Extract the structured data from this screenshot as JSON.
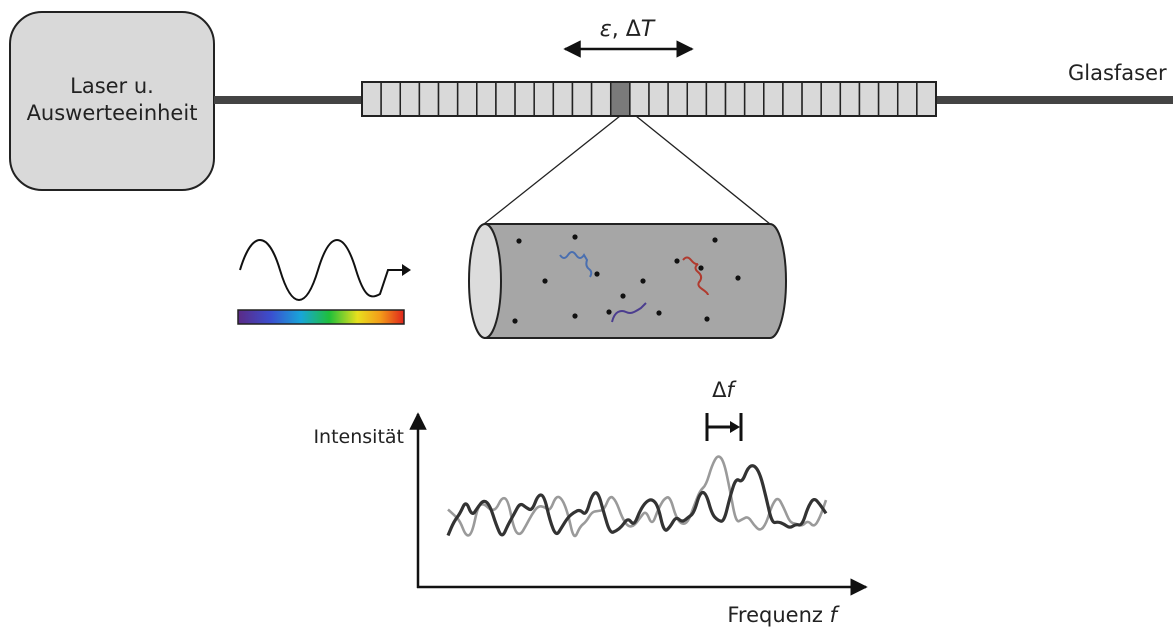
{
  "laser_box": {
    "line1": "Laser u.",
    "line2": "Auswerteeinheit"
  },
  "fiber_label": "Glasfaser",
  "strain_temp_label": {
    "eps": "ε",
    "sep": ", Δ",
    "t": "T"
  },
  "axis": {
    "y_label": "Intensität",
    "x_label_text": "Frequenz ",
    "x_label_var": "f"
  },
  "shift_label": {
    "delta": "Δ",
    "var": "f"
  },
  "colors": {
    "box_fill": "#d9d9d9",
    "fiber": "#444444",
    "highlight_segment": "#7a7a7a",
    "cylinder_fill": "#a6a6a6",
    "cylinder_cap": "#dcdcdc",
    "trace_light": "#9a9a9a",
    "trace_dark": "#333333",
    "photon_blue": "#4a6fb0",
    "photon_purple": "#4b3d8f",
    "photon_red": "#b03a2e"
  },
  "icons": [
    "wave-icon",
    "spectrum-bar",
    "scatter-cylinder",
    "photon-icon"
  ]
}
